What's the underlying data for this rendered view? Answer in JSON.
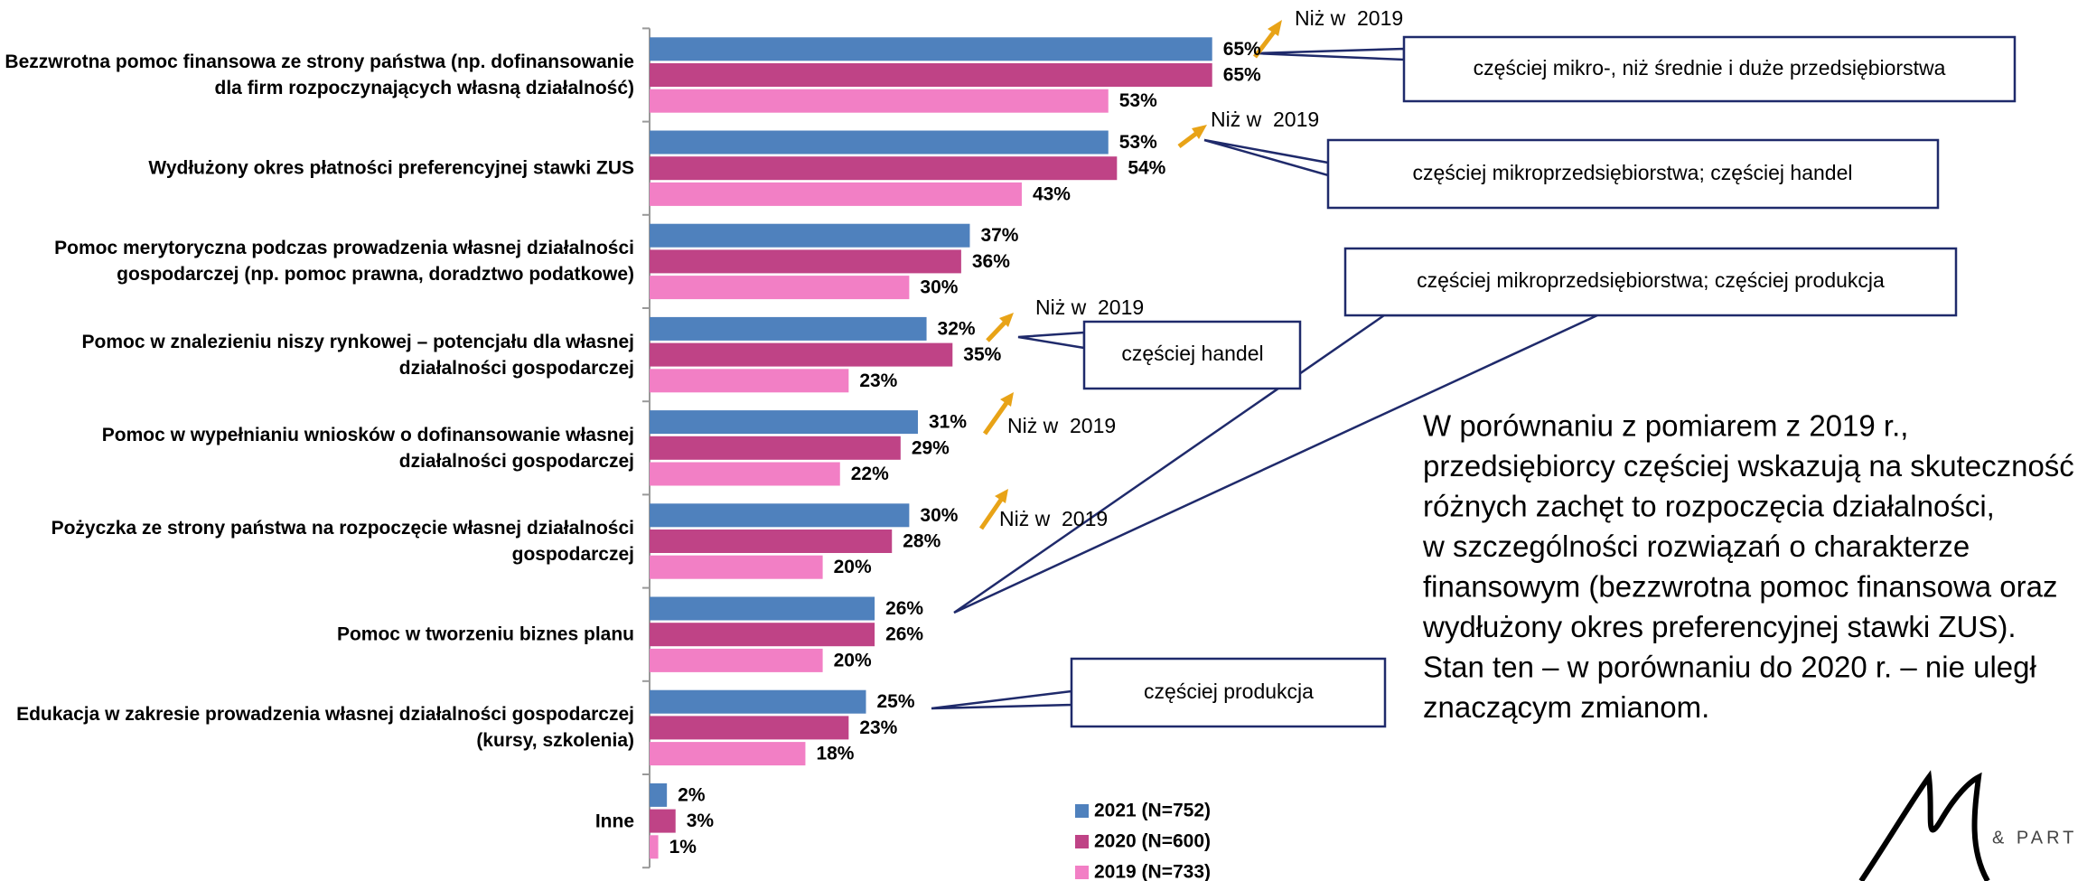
{
  "chart_data": {
    "type": "bar",
    "orientation": "horizontal",
    "categories": [
      "Bezzwrotna pomoc finansowa ze strony państwa (np. dofinansowanie dla firm rozpoczynających własną działalność)",
      "Wydłużony okres płatności preferencyjnej stawki ZUS",
      "Pomoc merytoryczna podczas prowadzenia własnej działalności gospodarczej (np. pomoc prawna, doradztwo podatkowe)",
      "Pomoc w znalezieniu niszy rynkowej – potencjału dla własnej działalności gospodarczej",
      "Pomoc w wypełnianiu wniosków o dofinansowanie własnej działalności gospodarczej",
      "Pożyczka ze strony państwa na rozpoczęcie własnej działalności gospodarczej",
      "Pomoc w tworzeniu biznes planu",
      "Edukacja w zakresie prowadzenia własnej działalności gospodarczej (kursy, szkolenia)",
      "Inne"
    ],
    "series": [
      {
        "name": "2021 (N=752)",
        "color": "#4f81bd",
        "values": [
          65,
          53,
          37,
          32,
          31,
          30,
          26,
          25,
          2
        ],
        "value_labels": [
          "65%",
          "53%",
          "37%",
          "32%",
          "31%",
          "30%",
          "26%",
          "25%",
          "2%"
        ]
      },
      {
        "name": "2020 (N=600)",
        "color": "#bf4386",
        "values": [
          65,
          54,
          36,
          35,
          29,
          28,
          26,
          23,
          3
        ],
        "value_labels": [
          "65%",
          "54%",
          "36%",
          "35%",
          "29%",
          "28%",
          "26%",
          "23%",
          "3%"
        ]
      },
      {
        "name": "2019 (N=733)",
        "color": "#f27fc5",
        "values": [
          53,
          43,
          30,
          23,
          22,
          20,
          20,
          18,
          1
        ],
        "value_labels": [
          "53%",
          "43%",
          "30%",
          "23%",
          "22%",
          "20%",
          "20%",
          "18%",
          "1%"
        ]
      }
    ],
    "xlim": [
      0,
      100
    ],
    "legend": "bottom",
    "annotations": {
      "trend": [
        "Niż w  2019",
        "Niż w  2019",
        "Niż w  2019",
        "Niż w  2019",
        "Niż w  2019"
      ],
      "callouts": [
        "częściej mikro-, niż średnie i duże przedsiębiorstwa",
        "częściej mikroprzedsiębiorstwa; częściej handel",
        "częściej mikroprzedsiębiorstwa; częściej produkcja",
        "częściej handel",
        "częściej produkcja"
      ],
      "summary": [
        "W porównaniu z pomiarem z 2019 r.,",
        "przedsiębiorcy częściej wskazują na skuteczność",
        "różnych zachęt to rozpoczęcia działalności,",
        "w szczególności rozwiązań o charakterze",
        "finansowym (bezzwrotna pomoc finansowa oraz",
        "wydłużony okres preferencyjnej stawki ZUS).",
        "Stan ten – w porównaniu do 2020 r. – nie uległ",
        "znaczącym zmianom."
      ],
      "logo": "& PART"
    }
  }
}
